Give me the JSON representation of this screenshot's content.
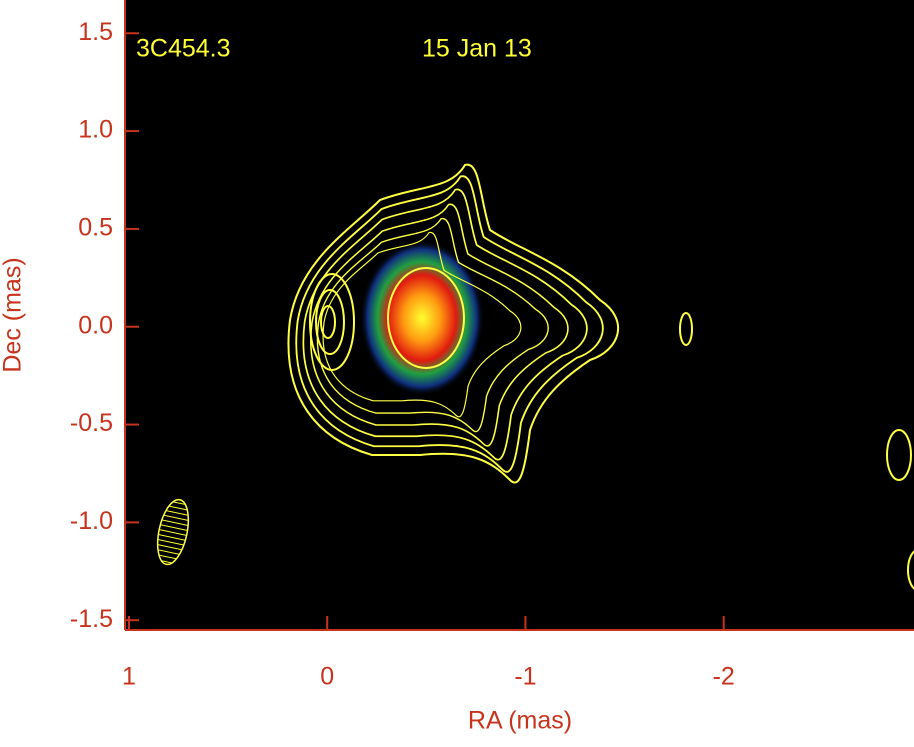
{
  "chart_data": {
    "type": "image",
    "annotations": [
      "3C454.3",
      "15 Jan 13"
    ],
    "xlabel": "RA (mas)",
    "ylabel": "Dec (mas)",
    "xlim": [
      1.02,
      -2.96
    ],
    "ylim": [
      -1.55,
      1.67
    ],
    "xticks": [
      1,
      0,
      -1,
      -2
    ],
    "yticks": [
      1.5,
      {
        "value": 1.0,
        "label": "1.0"
      },
      0.5,
      {
        "value": 0.0,
        "label": "0.0"
      },
      -0.5,
      {
        "value": -1.0,
        "label": "-1.0"
      },
      -1.5
    ],
    "axis_color": "#c8331d",
    "annotation_color": "#ffff33"
  }
}
